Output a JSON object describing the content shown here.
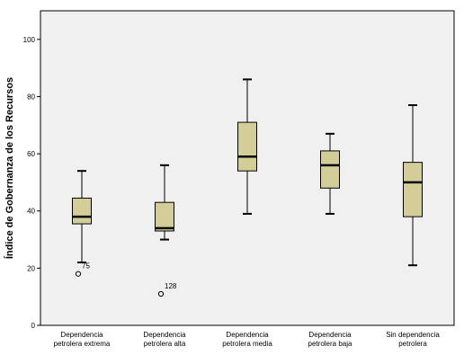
{
  "chart_data": {
    "type": "boxplot",
    "ylabel": "Índice de Gobernanza de los Recursos",
    "ylim": [
      0,
      110
    ],
    "yticks": [
      0,
      20,
      40,
      60,
      80,
      100
    ],
    "grid": false,
    "colors": {
      "plot_background": "#f0f0f0",
      "box_fill": "#d3ce97",
      "stroke": "#000000"
    },
    "categories": [
      {
        "label_lines": [
          "Dependencia",
          "petrolera extrema"
        ],
        "whisker_low": 22,
        "q1": 35.5,
        "median": 38,
        "q3": 44.5,
        "whisker_high": 54,
        "outliers": [
          {
            "value": 18,
            "label": "75"
          }
        ]
      },
      {
        "label_lines": [
          "Dependencia",
          "petrolera alta"
        ],
        "whisker_low": 30,
        "q1": 33,
        "median": 34,
        "q3": 43,
        "whisker_high": 56,
        "outliers": [
          {
            "value": 11,
            "label": "128"
          }
        ]
      },
      {
        "label_lines": [
          "Dependencia",
          "petrolera media"
        ],
        "whisker_low": 39,
        "q1": 54,
        "median": 59,
        "q3": 71,
        "whisker_high": 86,
        "outliers": []
      },
      {
        "label_lines": [
          "Dependencia",
          "petrolera baja"
        ],
        "whisker_low": 39,
        "q1": 48,
        "median": 56,
        "q3": 61,
        "whisker_high": 67,
        "outliers": []
      },
      {
        "label_lines": [
          "Sin dependencia",
          "petrolera"
        ],
        "whisker_low": 21,
        "q1": 38,
        "median": 50,
        "q3": 57,
        "whisker_high": 77,
        "outliers": []
      }
    ]
  }
}
